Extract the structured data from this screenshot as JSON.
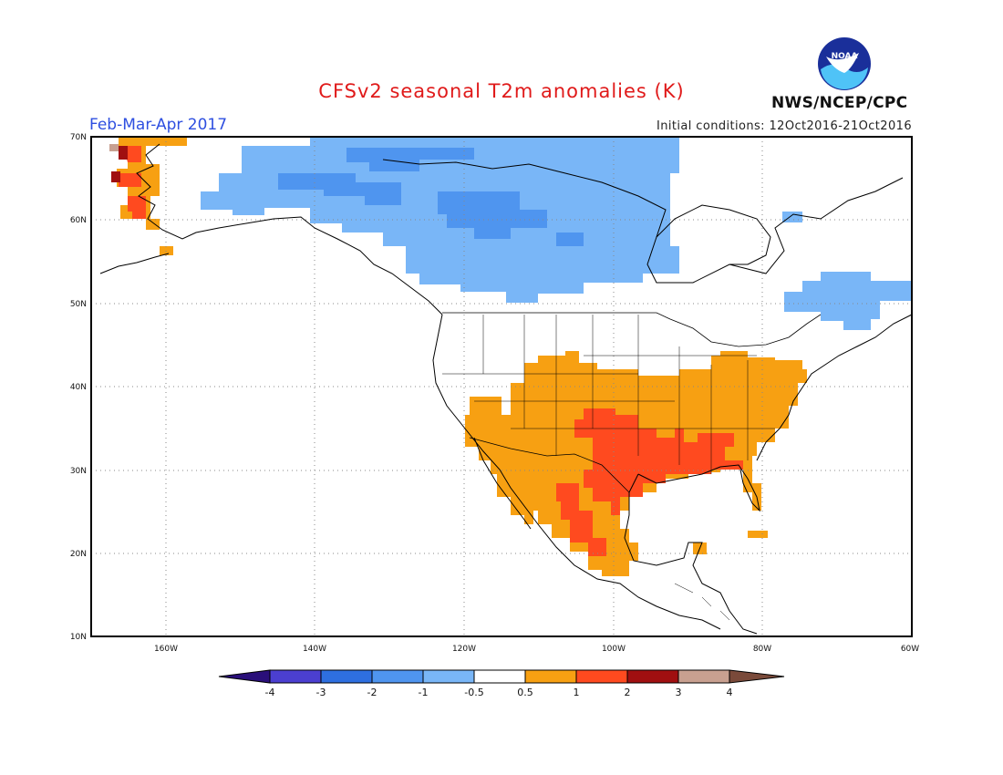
{
  "title": "CFSv2 seasonal T2m anomalies (K)",
  "period": "Feb-Mar-Apr 2017",
  "initial_conditions": "Initial conditions: 12Oct2016-21Oct2016",
  "organization": "NWS/NCEP/CPC",
  "logo_text": "NOAA",
  "colors": {
    "cold4": "#2a0f7a",
    "cold3": "#4b3fd0",
    "cold2": "#2e6fe0",
    "cold1": "#4f95ef",
    "cold05": "#79b6f7",
    "neutral": "#ffffff",
    "warm05": "#f7a012",
    "warm1": "#ff4a1f",
    "warm2": "#d31b12",
    "warm3": "#a00f10",
    "warm4": "#c8a090",
    "warm5": "#7a4a3a"
  },
  "axes": {
    "lat_labels": [
      "70N",
      "60N",
      "50N",
      "40N",
      "30N",
      "20N",
      "10N"
    ],
    "lon_labels": [
      "160W",
      "140W",
      "120W",
      "100W",
      "80W",
      "60W"
    ],
    "lat_range": [
      10,
      70
    ],
    "lon_range": [
      -170,
      -60
    ],
    "grid": true
  },
  "colorbar": {
    "levels": [
      "-4",
      "-3",
      "-2",
      "-1",
      "-0.5",
      "0.5",
      "1",
      "2",
      "3",
      "4"
    ]
  }
}
